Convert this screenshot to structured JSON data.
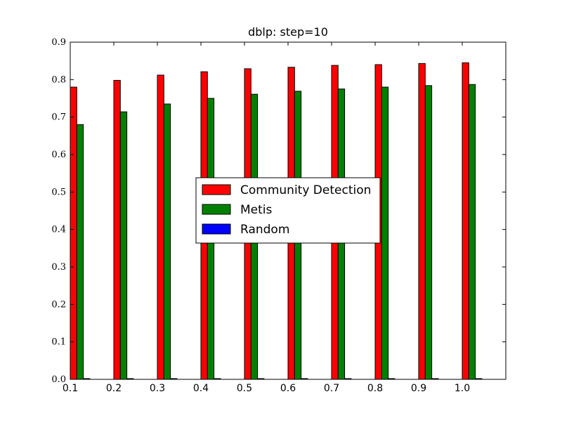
{
  "chart_data": {
    "type": "bar",
    "title": "dblp: step=10",
    "xlabel": "",
    "ylabel": "",
    "categories": [
      "0.1",
      "0.2",
      "0.3",
      "0.4",
      "0.5",
      "0.6",
      "0.7",
      "0.8",
      "0.9",
      "1.0"
    ],
    "series": [
      {
        "name": "Community Detection",
        "color": "#ff0000",
        "values": [
          0.78,
          0.798,
          0.812,
          0.821,
          0.829,
          0.833,
          0.838,
          0.84,
          0.843,
          0.845
        ]
      },
      {
        "name": "Metis",
        "color": "#008000",
        "values": [
          0.68,
          0.714,
          0.735,
          0.75,
          0.761,
          0.769,
          0.775,
          0.78,
          0.784,
          0.787
        ]
      },
      {
        "name": "Random",
        "color": "#0000ff",
        "values": [
          0.002,
          0.002,
          0.002,
          0.002,
          0.002,
          0.002,
          0.002,
          0.002,
          0.002,
          0.002
        ]
      }
    ],
    "ylim": [
      0,
      0.9
    ],
    "yticks": [
      "0.0",
      "0.1",
      "0.2",
      "0.3",
      "0.4",
      "0.5",
      "0.6",
      "0.7",
      "0.8",
      "0.9"
    ],
    "grid": false,
    "legend_position": "center"
  }
}
